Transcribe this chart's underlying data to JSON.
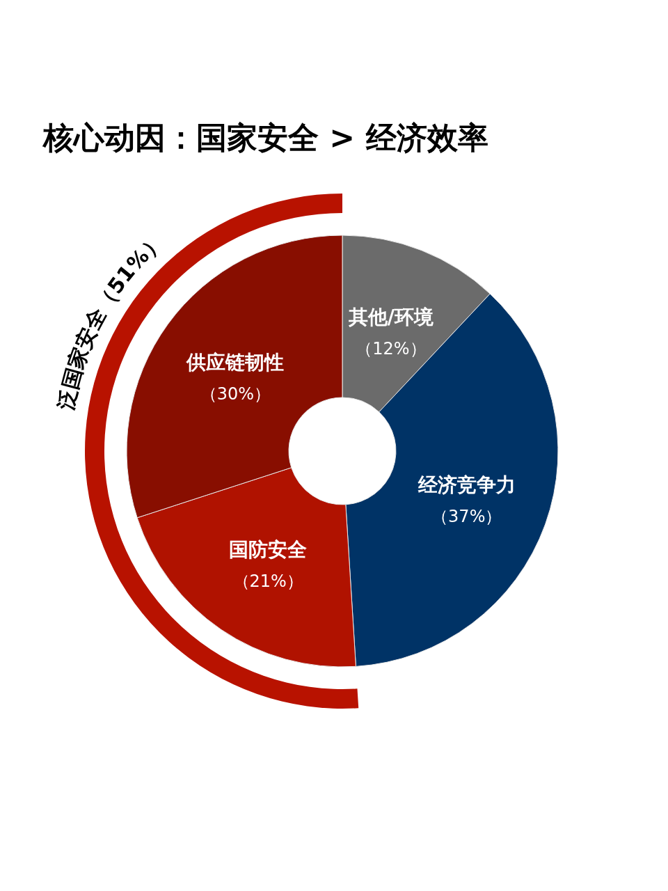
{
  "chart_data": {
    "type": "donut",
    "title": "核心动因：国家安全 > 经济效率",
    "categories": [
      "其他/环境",
      "经济竞争力",
      "国防安全",
      "供应链韧性"
    ],
    "values": [
      12,
      37,
      21,
      30
    ],
    "colors": [
      "#6b6b6b",
      "#003366",
      "#b01200",
      "#880e00"
    ],
    "value_labels": [
      "（12%）",
      "（37%）",
      "（21%）",
      "（30%）"
    ],
    "annotations": [
      "泛国家安全（51%）"
    ]
  }
}
